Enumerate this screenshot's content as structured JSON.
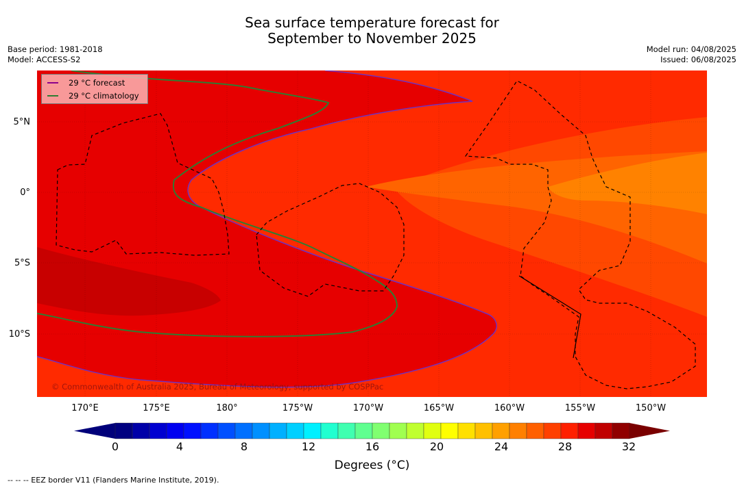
{
  "title": {
    "line1": "Sea surface temperature forecast for",
    "line2": "September to November 2025"
  },
  "meta": {
    "base_period": "Base period: 1981-2018",
    "model": "Model: ACCESS-S2",
    "model_run": "Model run: 04/08/2025",
    "issued": "Issued: 06/08/2025"
  },
  "map": {
    "lat_labels": [
      "5°N",
      "0°",
      "5°S",
      "10°S"
    ],
    "lon_labels": [
      "170°E",
      "175°E",
      "180°",
      "175°W",
      "170°W",
      "165°W",
      "160°W",
      "155°W",
      "150°W"
    ],
    "copyright": "© Commonwealth of Australia 2025, Bureau of Meteorology, supported by COSPPac",
    "colors": {
      "t29": "#e60000",
      "t28": "#ff2a00",
      "t27": "#ff4800",
      "t26": "#ff6400",
      "t25": "#ff8200",
      "t30": "#c80000",
      "eez": "#000000",
      "forecast_line": "#7030c0",
      "climatology_line": "#2e7d32"
    }
  },
  "legend": {
    "forecast": "29 °C  forecast",
    "climatology": "29 °C  climatology",
    "forecast_color": "#8b008b",
    "climatology_color": "#2e7d32"
  },
  "colorbar": {
    "labels": [
      "0",
      "4",
      "8",
      "12",
      "16",
      "20",
      "24",
      "28",
      "32"
    ],
    "title": "Degrees (°C)",
    "colors": [
      "#000080",
      "#0000a8",
      "#0000d0",
      "#0000f0",
      "#0010ff",
      "#0030ff",
      "#0050ff",
      "#0070ff",
      "#0090ff",
      "#00b0ff",
      "#00d0ff",
      "#00f0ff",
      "#20ffd0",
      "#40ffb0",
      "#60ff90",
      "#80ff70",
      "#a0ff50",
      "#c0ff30",
      "#e0ff10",
      "#ffff00",
      "#ffe000",
      "#ffc000",
      "#ffa000",
      "#ff8000",
      "#ff6000",
      "#ff4000",
      "#ff2000",
      "#e60000",
      "#c00000",
      "#900000"
    ],
    "under_color": "#00007a",
    "over_color": "#7a0000"
  },
  "footnote": "-- -- -- EEZ border V11 (Flanders Marine Institute, 2019)."
}
